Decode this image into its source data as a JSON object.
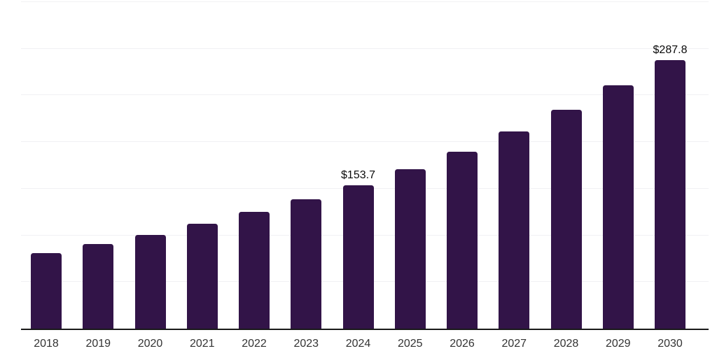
{
  "chart_data": {
    "type": "bar",
    "title": "",
    "xlabel": "",
    "ylabel": "",
    "categories": [
      "2018",
      "2019",
      "2020",
      "2021",
      "2022",
      "2023",
      "2024",
      "2025",
      "2026",
      "2027",
      "2028",
      "2029",
      "2030"
    ],
    "values": [
      80.7,
      90.7,
      100.4,
      112.3,
      125.0,
      138.4,
      153.7,
      171.0,
      190.0,
      211.2,
      234.5,
      260.5,
      287.8
    ],
    "value_labels": [
      "",
      "",
      "",
      "",
      "",
      "",
      "$153.7",
      "",
      "",
      "",
      "",
      "",
      "$287.8"
    ],
    "ylim": [
      0,
      350
    ],
    "gridline_step": 50,
    "grid": "horizontal-only",
    "y_tick_labels_visible": false,
    "legend_position": "none",
    "colors": {
      "bar": "#321448",
      "axis_line": "#1a1a1a",
      "gridline": "#f1f1f4",
      "category_label": "#333333",
      "value_label": "#0a0a0a",
      "background": "#ffffff"
    }
  }
}
